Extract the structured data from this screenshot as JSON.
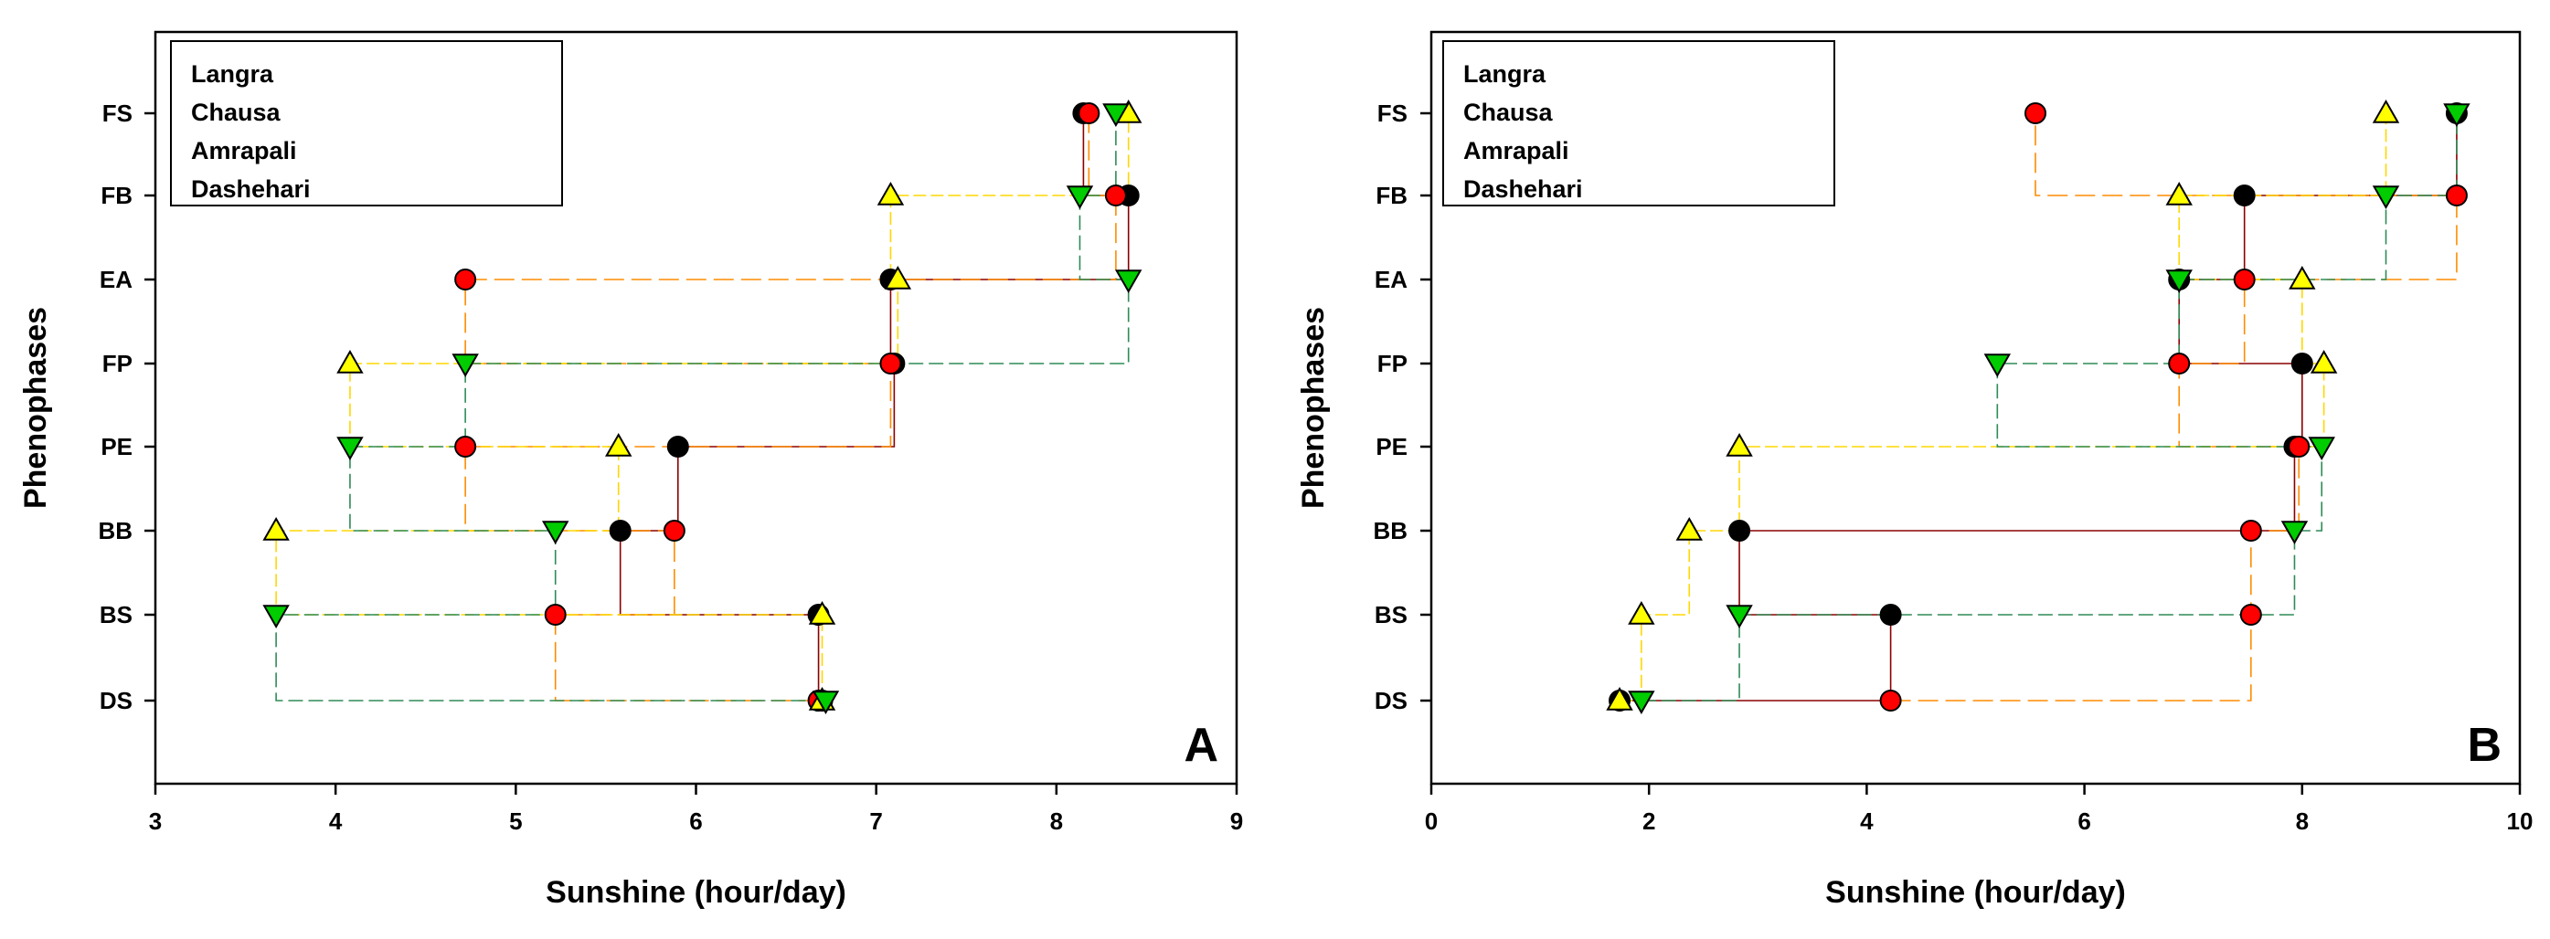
{
  "chart_data": [
    {
      "type": "scatter",
      "panel_label": "A",
      "xlabel": "Sunshine (hour/day)",
      "ylabel": "Phenophases",
      "xlim": [
        3,
        9
      ],
      "xticks": [
        "3",
        "4",
        "5",
        "6",
        "7",
        "8",
        "9"
      ],
      "categories": [
        "DS",
        "BS",
        "BB",
        "PE",
        "FP",
        "EA",
        "FB",
        "FS"
      ],
      "legend": [
        "Langra",
        "Chausa",
        "Amrapali",
        "Dashehari"
      ],
      "series": [
        {
          "name": "Langra",
          "marker": "circle",
          "color": "#000000",
          "line": "#8b0000",
          "x": [
            6.7,
            6.68,
            5.58,
            5.9,
            7.1,
            7.08,
            8.4,
            8.15
          ],
          "y": [
            "DS",
            "BS",
            "BB",
            "PE",
            "FP",
            "EA",
            "FB",
            "FS"
          ]
        },
        {
          "name": "Chausa",
          "marker": "circle",
          "color": "#ff0000",
          "line": "#ff8c00",
          "x": [
            6.68,
            5.22,
            5.88,
            4.72,
            7.08,
            4.72,
            8.33,
            8.18
          ],
          "y": [
            "DS",
            "BS",
            "BB",
            "PE",
            "FP",
            "EA",
            "FB",
            "FS"
          ]
        },
        {
          "name": "Amrapali",
          "marker": "triangle-up",
          "color": "#ffff00",
          "line": "#ffd700",
          "x": [
            6.7,
            6.7,
            3.67,
            5.57,
            4.08,
            7.12,
            7.08,
            8.4
          ],
          "y": [
            "DS",
            "BS",
            "BB",
            "PE",
            "FP",
            "EA",
            "FB",
            "FS"
          ]
        },
        {
          "name": "Dashehari",
          "marker": "triangle-down",
          "color": "#00cc00",
          "line": "#2e8b57",
          "x": [
            6.72,
            3.67,
            5.22,
            4.08,
            4.72,
            8.4,
            8.13,
            8.33
          ],
          "y": [
            "DS",
            "BS",
            "BB",
            "PE",
            "FP",
            "EA",
            "FB",
            "FS"
          ]
        }
      ]
    },
    {
      "type": "scatter",
      "panel_label": "B",
      "xlabel": "Sunshine (hour/day)",
      "ylabel": "Phenophases",
      "xlim": [
        0,
        10
      ],
      "xticks": [
        "0",
        "2",
        "4",
        "6",
        "8",
        "10"
      ],
      "categories": [
        "DS",
        "BS",
        "BB",
        "PE",
        "FP",
        "EA",
        "FB",
        "FS"
      ],
      "legend": [
        "Langra",
        "Chausa",
        "Amrapali",
        "Dashehari"
      ],
      "series": [
        {
          "name": "Langra",
          "marker": "circle",
          "color": "#000000",
          "line": "#8b0000",
          "x": [
            1.73,
            4.22,
            2.83,
            7.93,
            8.0,
            6.87,
            7.47,
            9.42
          ],
          "y": [
            "DS",
            "BS",
            "BB",
            "PE",
            "FP",
            "EA",
            "FB",
            "FS"
          ]
        },
        {
          "name": "Chausa",
          "marker": "circle",
          "color": "#ff0000",
          "line": "#ff8c00",
          "x": [
            4.22,
            7.53,
            7.53,
            7.97,
            6.87,
            7.47,
            9.42,
            5.55
          ],
          "y": [
            "DS",
            "BS",
            "BB",
            "PE",
            "FP",
            "EA",
            "FB",
            "FS"
          ]
        },
        {
          "name": "Amrapali",
          "marker": "triangle-up",
          "color": "#ffff00",
          "line": "#ffd700",
          "x": [
            1.73,
            1.93,
            2.37,
            2.83,
            8.2,
            8.0,
            6.87,
            8.77
          ],
          "y": [
            "DS",
            "BS",
            "BB",
            "PE",
            "FP",
            "EA",
            "FB",
            "FS"
          ]
        },
        {
          "name": "Dashehari",
          "marker": "triangle-down",
          "color": "#00cc00",
          "line": "#2e8b57",
          "x": [
            1.93,
            2.83,
            7.93,
            8.18,
            5.2,
            6.87,
            8.77,
            9.42
          ],
          "y": [
            "DS",
            "BS",
            "BB",
            "PE",
            "FP",
            "EA",
            "FB",
            "FS"
          ]
        }
      ]
    }
  ]
}
